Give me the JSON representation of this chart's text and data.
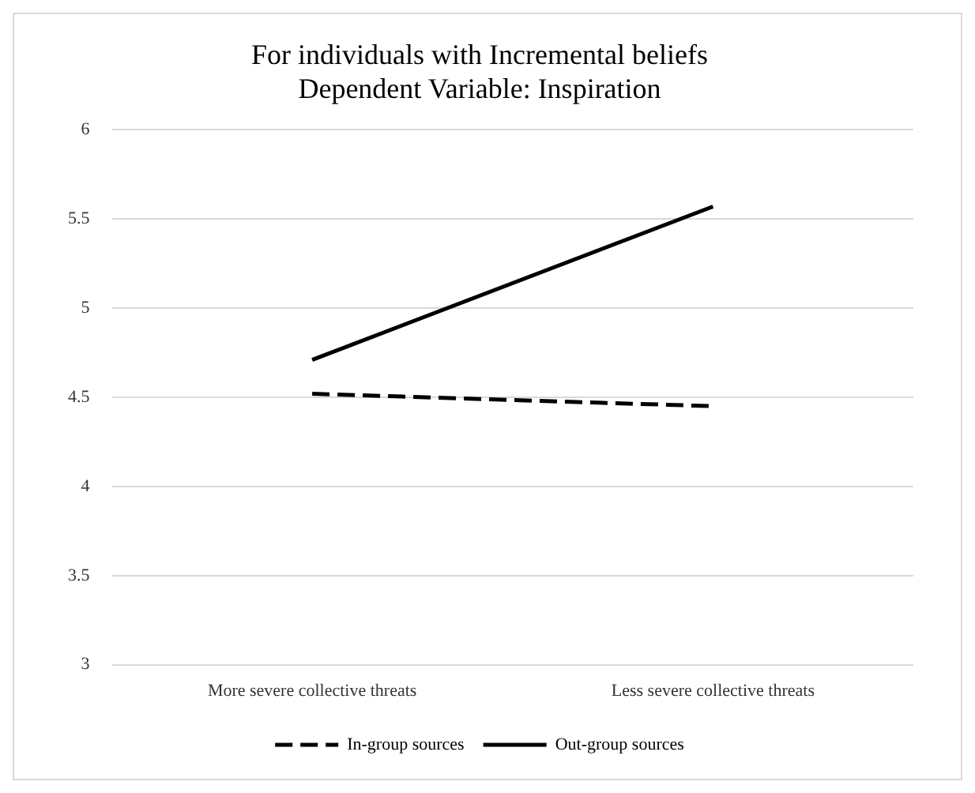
{
  "chart_data": {
    "type": "line",
    "title": "For individuals with Incremental beliefs\nDependent Variable: Inspiration",
    "categories": [
      "More severe collective threats",
      "Less severe collective threats"
    ],
    "series": [
      {
        "name": "In-group sources",
        "color": "#000000",
        "values": [
          4.52,
          4.45
        ],
        "line_style": "dashed"
      },
      {
        "name": "Out-group sources",
        "color": "#000000",
        "values": [
          4.71,
          5.57
        ],
        "line_style": "solid"
      }
    ],
    "ylim": [
      3,
      6
    ],
    "yticks": [
      3,
      3.5,
      4,
      4.5,
      5,
      5.5,
      6
    ],
    "grid": "y",
    "legend": "bottom",
    "marker": "none"
  }
}
